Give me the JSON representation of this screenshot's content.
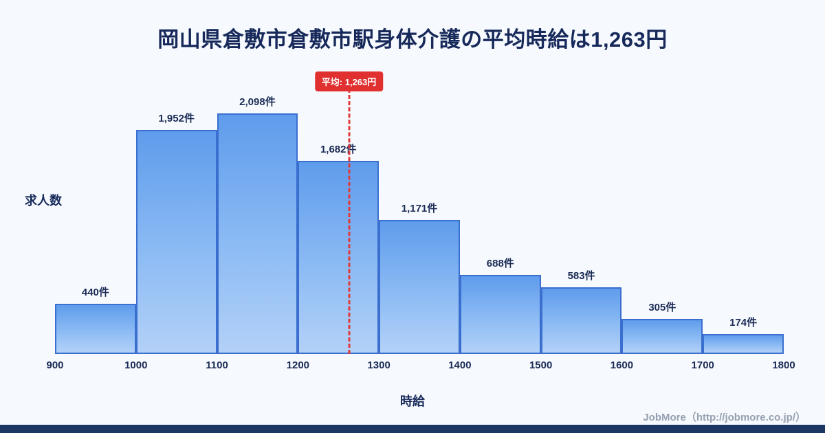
{
  "title": "岡山県倉敷市倉敷市駅身体介護の平均時給は1,263円",
  "footer": "JobMore（http://jobmore.co.jp/）",
  "chart_data": {
    "type": "bar",
    "title": "岡山県倉敷市倉敷市駅身体介護の平均時給は1,263円",
    "xlabel": "時給",
    "ylabel": "求人数",
    "bin_edges": [
      900,
      1000,
      1100,
      1200,
      1300,
      1400,
      1500,
      1600,
      1700,
      1800
    ],
    "values": [
      440,
      1952,
      2098,
      1682,
      1171,
      688,
      583,
      305,
      174
    ],
    "value_labels": [
      "440件",
      "1,952件",
      "2,098件",
      "1,682件",
      "1,171件",
      "688件",
      "583件",
      "305件",
      "174件"
    ],
    "x_range": [
      900,
      1800
    ],
    "average": 1263,
    "average_label": "平均: 1,263円",
    "legend": "none",
    "grid": "off",
    "colors": {
      "bar_fill_top": "#5f9cec",
      "bar_fill_bottom": "#b3d1f8",
      "bar_border": "#3a6fd0",
      "average_line": "#e03a3a",
      "title_text": "#16295a",
      "background": "#f6f9fd",
      "footer_strip": "#1d3765"
    }
  }
}
